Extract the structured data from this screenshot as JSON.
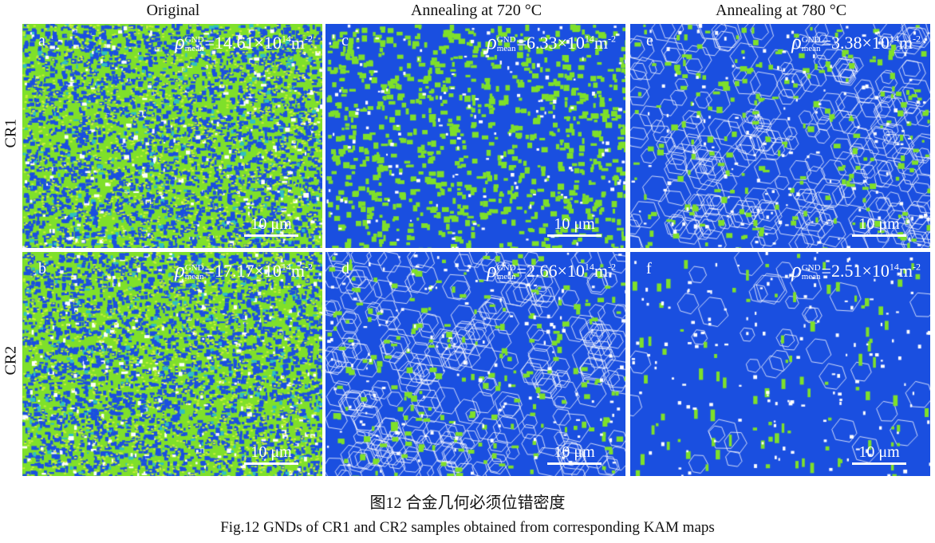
{
  "column_titles": [
    "Original",
    "Annealing at 720 °C",
    "Annealing at 780 °C"
  ],
  "row_labels": [
    "CR1",
    "CR2"
  ],
  "panels": [
    {
      "letter": "a",
      "value": "14.61",
      "style": "original"
    },
    {
      "letter": "c",
      "value": "6.33",
      "style": "partial"
    },
    {
      "letter": "e",
      "value": "3.38",
      "style": "grains"
    },
    {
      "letter": "b",
      "value": "17.17",
      "style": "original"
    },
    {
      "letter": "d",
      "value": "2.66",
      "style": "grains"
    },
    {
      "letter": "f",
      "value": "2.51",
      "style": "sparse"
    }
  ],
  "rho_symbol": "ρ",
  "rho_sup": "GND",
  "rho_sub": "mean",
  "times_ten": "×10",
  "exponent": "14",
  "unit": "m",
  "unit_exp": "-2",
  "scale_bar": "10 μm",
  "caption_cn": "图12  合金几何必须位错密度",
  "caption_en": "Fig.12  GNDs of CR1 and CR2 samples obtained from corresponding KAM maps",
  "colors": {
    "blue": "#1a4fe0",
    "green": "#7fe02a",
    "white": "#ffffff"
  }
}
